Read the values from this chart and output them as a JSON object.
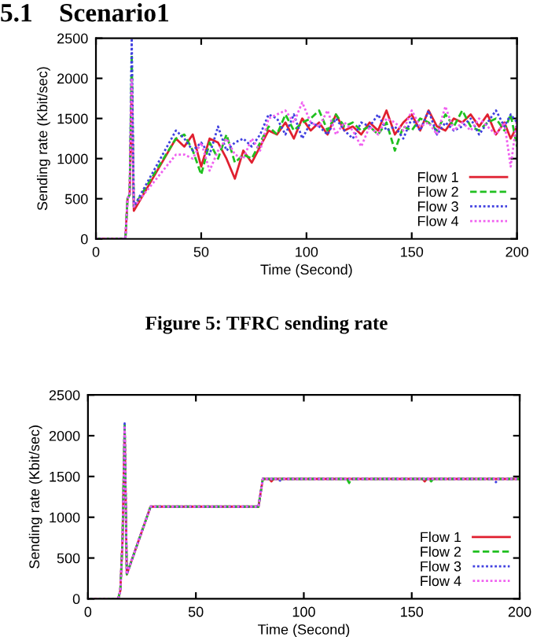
{
  "chart_data": [
    {
      "type": "line",
      "title": "5.1    Scenario1",
      "xlabel": "Time (Second)",
      "ylabel": "Sending rate (Kbit/sec)",
      "annotations": [
        "Figure 5: TFRC sending rate"
      ],
      "x": [
        0,
        14,
        15,
        16,
        17,
        18,
        38,
        42,
        46,
        50,
        54,
        58,
        62,
        66,
        70,
        74,
        78,
        82,
        86,
        90,
        94,
        98,
        102,
        106,
        110,
        114,
        118,
        122,
        126,
        130,
        134,
        138,
        142,
        146,
        150,
        154,
        158,
        162,
        166,
        170,
        174,
        178,
        182,
        186,
        190,
        194,
        197,
        200
      ],
      "series": [
        {
          "name": "Flow 1",
          "color": "#e02030",
          "line_style": "solid",
          "values": [
            0,
            0,
            500,
            550,
            1900,
            350,
            1250,
            1150,
            1300,
            900,
            1250,
            1200,
            1000,
            750,
            1100,
            950,
            1150,
            1350,
            1300,
            1450,
            1250,
            1500,
            1350,
            1450,
            1300,
            1550,
            1350,
            1400,
            1300,
            1450,
            1350,
            1600,
            1300,
            1450,
            1550,
            1350,
            1600,
            1400,
            1350,
            1500,
            1450,
            1550,
            1400,
            1550,
            1300,
            1450,
            1250,
            1400
          ]
        },
        {
          "name": "Flow 2",
          "color": "#20c020",
          "line_style": "dashed",
          "values": [
            0,
            0,
            500,
            550,
            2300,
            400,
            1250,
            1300,
            1100,
            800,
            1200,
            1000,
            1300,
            950,
            1050,
            1000,
            1200,
            1400,
            1300,
            1550,
            1350,
            1450,
            1500,
            1600,
            1350,
            1550,
            1400,
            1450,
            1350,
            1400,
            1300,
            1450,
            1100,
            1400,
            1350,
            1500,
            1450,
            1350,
            1550,
            1400,
            1600,
            1400,
            1350,
            1450,
            1500,
            1350,
            1550,
            1150
          ]
        },
        {
          "name": "Flow 3",
          "color": "#4040e0",
          "line_style": "dotted",
          "values": [
            0,
            0,
            500,
            550,
            2500,
            400,
            1350,
            1250,
            1100,
            1200,
            1050,
            1400,
            1100,
            1200,
            1250,
            1150,
            1300,
            1550,
            1500,
            1300,
            1550,
            1250,
            1450,
            1400,
            1300,
            1500,
            1350,
            1250,
            1450,
            1400,
            1550,
            1350,
            1400,
            1250,
            1500,
            1350,
            1600,
            1300,
            1450,
            1350,
            1400,
            1500,
            1300,
            1450,
            1600,
            1400,
            1550,
            1450
          ]
        },
        {
          "name": "Flow 4",
          "color": "#f060f0",
          "line_style": "dotted",
          "values": [
            0,
            0,
            500,
            550,
            2000,
            400,
            1050,
            1050,
            1000,
            1200,
            850,
            1100,
            1250,
            1050,
            1000,
            1250,
            1100,
            1500,
            1550,
            1600,
            1450,
            1700,
            1450,
            1400,
            1600,
            1300,
            1450,
            1350,
            1150,
            1400,
            1300,
            1500,
            1450,
            1350,
            1600,
            1400,
            1450,
            1300,
            1650,
            1350,
            1450,
            1350,
            1500,
            1400,
            1300,
            1450,
            900,
            1500
          ]
        }
      ],
      "xlim": [
        0,
        200
      ],
      "xticks": [
        0,
        50,
        100,
        150,
        200
      ],
      "ylim": [
        0,
        2500
      ],
      "yticks": [
        0,
        500,
        1000,
        1500,
        2000,
        2500
      ],
      "legend": "bottom right",
      "grid": false
    },
    {
      "type": "line",
      "xlabel": "Time (Second)",
      "ylabel": "Sending rate (Kbit/sec)",
      "series": [
        {
          "name": "Flow 1",
          "color": "#e02030",
          "line_style": "solid",
          "x": [
            0,
            14,
            15,
            16,
            17,
            18,
            29,
            79,
            81,
            84,
            85,
            86,
            155,
            156,
            157,
            200
          ],
          "values": [
            0,
            0,
            100,
            700,
            2100,
            300,
            1130,
            1130,
            1470,
            1470,
            1440,
            1470,
            1470,
            1440,
            1470,
            1470
          ]
        },
        {
          "name": "Flow 2",
          "color": "#20c020",
          "line_style": "dashed",
          "x": [
            0,
            14,
            15,
            16,
            17,
            18,
            29,
            79,
            81,
            120,
            121,
            122,
            158,
            159,
            160,
            200
          ],
          "values": [
            0,
            0,
            100,
            700,
            2150,
            300,
            1130,
            1130,
            1470,
            1470,
            1420,
            1470,
            1470,
            1440,
            1470,
            1470
          ]
        },
        {
          "name": "Flow 3",
          "color": "#4040e0",
          "line_style": "dotted",
          "x": [
            0,
            14,
            15,
            16,
            17,
            18,
            29,
            79,
            81,
            88,
            89,
            90,
            188,
            189,
            190,
            200
          ],
          "values": [
            0,
            0,
            100,
            700,
            2150,
            300,
            1130,
            1130,
            1470,
            1470,
            1450,
            1470,
            1470,
            1430,
            1470,
            1470
          ]
        },
        {
          "name": "Flow 4",
          "color": "#f060f0",
          "line_style": "dotted",
          "x": [
            0,
            14,
            15,
            16,
            17,
            18,
            29,
            79,
            81,
            200
          ],
          "values": [
            0,
            0,
            100,
            700,
            2100,
            300,
            1130,
            1130,
            1470,
            1470
          ]
        }
      ],
      "xlim": [
        0,
        200
      ],
      "xticks": [
        0,
        50,
        100,
        150,
        200
      ],
      "ylim": [
        0,
        2500
      ],
      "yticks": [
        0,
        500,
        1000,
        1500,
        2000,
        2500
      ],
      "legend": "bottom right",
      "grid": false
    }
  ]
}
